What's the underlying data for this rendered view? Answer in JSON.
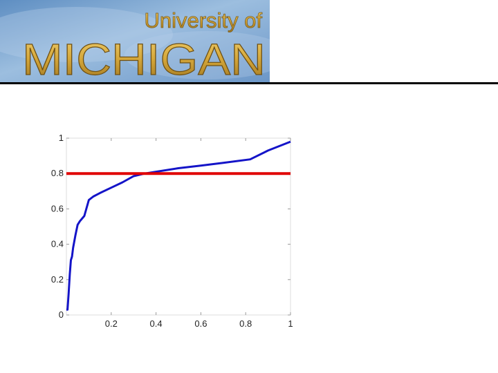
{
  "header": {
    "logo_line1": "University of",
    "logo_line2": "MICHIGAN"
  },
  "colors": {
    "logo_text": "#D4A639",
    "logo_bg": "#7FA6CF",
    "curve": "#1414C8",
    "threshold": "#E00000",
    "rule": "#000000"
  },
  "chart_data": {
    "type": "line",
    "title": "",
    "xlabel": "",
    "ylabel": "",
    "xlim": [
      0,
      1
    ],
    "ylim": [
      0,
      1
    ],
    "x_ticks": [
      "0.2",
      "0.4",
      "0.6",
      "0.8",
      "1"
    ],
    "y_ticks": [
      "0",
      "0.2",
      "0.4",
      "0.6",
      "0.8",
      "1"
    ],
    "grid": false,
    "legend": "none",
    "series": [
      {
        "x": [
          0.0,
          0.005,
          0.01,
          0.015,
          0.02,
          0.025,
          0.03,
          0.04,
          0.05,
          0.055,
          0.06,
          0.08,
          0.1,
          0.12,
          0.15,
          0.2,
          0.25,
          0.3,
          0.35,
          0.4,
          0.5,
          0.6,
          0.7,
          0.82,
          0.9,
          1.0
        ],
        "y": [
          0.03,
          0.03,
          0.12,
          0.23,
          0.31,
          0.33,
          0.38,
          0.45,
          0.51,
          0.52,
          0.53,
          0.56,
          0.65,
          0.67,
          0.69,
          0.72,
          0.75,
          0.785,
          0.8,
          0.81,
          0.83,
          0.845,
          0.86,
          0.88,
          0.93,
          0.98
        ]
      },
      {
        "x": [
          0.0,
          1.0
        ],
        "y": [
          0.8,
          0.8
        ]
      }
    ]
  }
}
